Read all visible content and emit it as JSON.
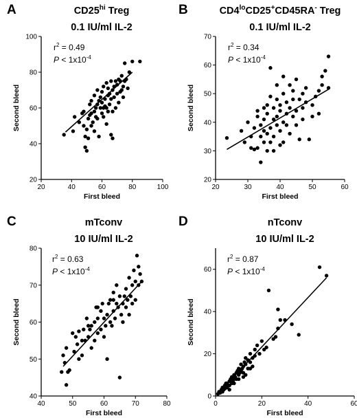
{
  "chart_data": [
    {
      "type": "scatter",
      "panel": "A",
      "title": [
        "CD25",
        "hi",
        " Treg",
        "0.1 IU/ml IL-2"
      ],
      "xlabel": "First bleed",
      "ylabel": "Second bleed",
      "xlim": [
        20,
        100
      ],
      "ylim": [
        20,
        100
      ],
      "xticks": [
        20,
        40,
        60,
        80,
        100
      ],
      "yticks": [
        20,
        40,
        60,
        80,
        100
      ],
      "stats": {
        "r2": "0.49",
        "p": "< 1x10",
        "p_exp": "-4"
      },
      "fit": {
        "x1": 36,
        "y1": 46.5,
        "x2": 80,
        "y2": 80
      },
      "points": [
        [
          35,
          45
        ],
        [
          41,
          47
        ],
        [
          42,
          55
        ],
        [
          45,
          52
        ],
        [
          47,
          57
        ],
        [
          48,
          58
        ],
        [
          48,
          50
        ],
        [
          49,
          38
        ],
        [
          49,
          44
        ],
        [
          50,
          36
        ],
        [
          50,
          48
        ],
        [
          51,
          43
        ],
        [
          51,
          54
        ],
        [
          52,
          56
        ],
        [
          52,
          62
        ],
        [
          53,
          50
        ],
        [
          53,
          57
        ],
        [
          53,
          64
        ],
        [
          54,
          52
        ],
        [
          55,
          47
        ],
        [
          55,
          58
        ],
        [
          55,
          67
        ],
        [
          56,
          60
        ],
        [
          57,
          62
        ],
        [
          57,
          70
        ],
        [
          57,
          54
        ],
        [
          58,
          64
        ],
        [
          58,
          44
        ],
        [
          59,
          60
        ],
        [
          59,
          66
        ],
        [
          60,
          57
        ],
        [
          60,
          63
        ],
        [
          60,
          69
        ],
        [
          61,
          72
        ],
        [
          61,
          55
        ],
        [
          62,
          61
        ],
        [
          62,
          65
        ],
        [
          63,
          60
        ],
        [
          63,
          74
        ],
        [
          63,
          51
        ],
        [
          64,
          67
        ],
        [
          64,
          71
        ],
        [
          65,
          62
        ],
        [
          65,
          68
        ],
        [
          66,
          65
        ],
        [
          66,
          75
        ],
        [
          66,
          45
        ],
        [
          67,
          43
        ],
        [
          67,
          58
        ],
        [
          67,
          70
        ],
        [
          68,
          72
        ],
        [
          68,
          66
        ],
        [
          69,
          60
        ],
        [
          69,
          75
        ],
        [
          70,
          68
        ],
        [
          70,
          73
        ],
        [
          71,
          63
        ],
        [
          71,
          76
        ],
        [
          72,
          69
        ],
        [
          72,
          75
        ],
        [
          73,
          70
        ],
        [
          73,
          78
        ],
        [
          74,
          72
        ],
        [
          74,
          66
        ],
        [
          75,
          75
        ],
        [
          75,
          85
        ],
        [
          76,
          76
        ],
        [
          77,
          71
        ],
        [
          78,
          80
        ],
        [
          80,
          86
        ],
        [
          85,
          86
        ],
        [
          56,
          55
        ],
        [
          61,
          60
        ],
        [
          64,
          58
        ]
      ]
    },
    {
      "type": "scatter",
      "panel": "B",
      "title": [
        "CD4",
        "lo",
        "CD25",
        "+",
        "CD45RA",
        "-",
        " Treg",
        "0.1 IU/ml IL-2"
      ],
      "xlabel": "First bleed",
      "ylabel": "Second bleed",
      "xlim": [
        20,
        60
      ],
      "ylim": [
        20,
        70
      ],
      "xticks": [
        20,
        30,
        40,
        50,
        60
      ],
      "yticks": [
        20,
        30,
        40,
        50,
        60,
        70
      ],
      "stats": {
        "r2": "0.34",
        "p": "< 1x10",
        "p_exp": "-4"
      },
      "fit": {
        "x1": 23.5,
        "y1": 30.5,
        "x2": 55,
        "y2": 51.5
      },
      "points": [
        [
          23.5,
          34.5
        ],
        [
          28,
          37
        ],
        [
          29,
          33
        ],
        [
          30,
          40
        ],
        [
          31,
          31
        ],
        [
          31,
          35
        ],
        [
          32,
          30.5
        ],
        [
          32,
          38
        ],
        [
          33,
          31
        ],
        [
          33,
          42
        ],
        [
          33,
          44
        ],
        [
          34,
          35
        ],
        [
          34,
          26
        ],
        [
          34,
          39
        ],
        [
          35,
          33
        ],
        [
          35,
          37
        ],
        [
          35,
          41
        ],
        [
          36,
          30
        ],
        [
          36,
          43
        ],
        [
          36,
          36
        ],
        [
          36,
          46
        ],
        [
          37,
          38
        ],
        [
          37,
          33
        ],
        [
          37,
          49
        ],
        [
          37,
          59
        ],
        [
          38,
          41
        ],
        [
          38,
          35
        ],
        [
          38,
          45
        ],
        [
          38,
          30
        ],
        [
          39,
          39
        ],
        [
          39,
          42
        ],
        [
          39,
          48
        ],
        [
          40,
          37
        ],
        [
          40,
          44
        ],
        [
          40,
          32
        ],
        [
          40,
          46
        ],
        [
          41,
          50
        ],
        [
          41,
          40
        ],
        [
          41,
          33
        ],
        [
          42,
          39
        ],
        [
          42,
          43
        ],
        [
          42,
          47
        ],
        [
          43,
          53
        ],
        [
          43,
          45
        ],
        [
          43,
          36
        ],
        [
          44,
          42
        ],
        [
          44,
          48
        ],
        [
          44,
          51
        ],
        [
          45,
          39
        ],
        [
          45,
          44
        ],
        [
          45,
          55
        ],
        [
          46,
          48
        ],
        [
          46,
          34
        ],
        [
          47,
          50
        ],
        [
          47,
          45
        ],
        [
          47,
          41
        ],
        [
          48,
          52
        ],
        [
          48,
          47
        ],
        [
          49,
          34
        ],
        [
          50,
          42
        ],
        [
          50,
          46
        ],
        [
          51,
          49
        ],
        [
          52,
          43
        ],
        [
          52,
          51
        ],
        [
          53,
          56
        ],
        [
          53,
          53
        ],
        [
          54,
          58
        ],
        [
          55,
          52
        ],
        [
          55,
          63
        ],
        [
          39,
          53
        ],
        [
          41,
          56
        ],
        [
          35,
          45
        ]
      ]
    },
    {
      "type": "scatter",
      "panel": "C",
      "title": [
        "mTconv",
        "10 IU/ml IL-2"
      ],
      "xlabel": "First bleed",
      "ylabel": "Second bleed",
      "xlim": [
        40,
        80
      ],
      "ylim": [
        40,
        80
      ],
      "xticks": [
        40,
        50,
        60,
        70,
        80
      ],
      "yticks": [
        40,
        50,
        60,
        70,
        80
      ],
      "stats": {
        "r2": "0.63",
        "p": "< 1x10",
        "p_exp": "-4"
      },
      "fit": {
        "x1": 47,
        "y1": 48,
        "x2": 72,
        "y2": 71
      },
      "points": [
        [
          46.5,
          46.5
        ],
        [
          47,
          51
        ],
        [
          47.5,
          49
        ],
        [
          48,
          53
        ],
        [
          48,
          43
        ],
        [
          48.5,
          46.5
        ],
        [
          49,
          47
        ],
        [
          50,
          57
        ],
        [
          50.5,
          52
        ],
        [
          51,
          56
        ],
        [
          51.5,
          54
        ],
        [
          52,
          57.5
        ],
        [
          52,
          50
        ],
        [
          53,
          55
        ],
        [
          53,
          51
        ],
        [
          53.5,
          58
        ],
        [
          54,
          55
        ],
        [
          54.5,
          61
        ],
        [
          55,
          56
        ],
        [
          55.5,
          58
        ],
        [
          56,
          53
        ],
        [
          56,
          59
        ],
        [
          57,
          60
        ],
        [
          57,
          55
        ],
        [
          57.5,
          64
        ],
        [
          58,
          61
        ],
        [
          58,
          57
        ],
        [
          59,
          58
        ],
        [
          59,
          63
        ],
        [
          59.5,
          65
        ],
        [
          60,
          61
        ],
        [
          60,
          56
        ],
        [
          60.5,
          59
        ],
        [
          61,
          50
        ],
        [
          61,
          62
        ],
        [
          61.5,
          65
        ],
        [
          62,
          60
        ],
        [
          62,
          66
        ],
        [
          62.5,
          59
        ],
        [
          63,
          63
        ],
        [
          63,
          68
        ],
        [
          63.5,
          61
        ],
        [
          64,
          65
        ],
        [
          64,
          70
        ],
        [
          64.5,
          64
        ],
        [
          65,
          67
        ],
        [
          65,
          45
        ],
        [
          65.5,
          62
        ],
        [
          66,
          65
        ],
        [
          66,
          60
        ],
        [
          66.5,
          67
        ],
        [
          67,
          64
        ],
        [
          67,
          69
        ],
        [
          67.5,
          66
        ],
        [
          68,
          62
        ],
        [
          68,
          72
        ],
        [
          68.5,
          67
        ],
        [
          69,
          70
        ],
        [
          69,
          65
        ],
        [
          69.5,
          74
        ],
        [
          70,
          71
        ],
        [
          70,
          66
        ],
        [
          70.5,
          78
        ],
        [
          71,
          70
        ],
        [
          71,
          75
        ],
        [
          71.5,
          73
        ],
        [
          72,
          71
        ],
        [
          55,
          59
        ],
        [
          58,
          64
        ],
        [
          63,
          66
        ]
      ]
    },
    {
      "type": "scatter",
      "panel": "D",
      "title": [
        "nTconv",
        "10 IU/ml IL-2"
      ],
      "xlabel": "First bleed",
      "ylabel": "Second bleed",
      "xlim": [
        0,
        60
      ],
      "ylim": [
        0,
        70
      ],
      "xticks": [
        0,
        20,
        40,
        60
      ],
      "yticks": [
        0,
        20,
        40,
        60
      ],
      "stats": {
        "r2": "0.87",
        "p": "< 1x10",
        "p_exp": "-4"
      },
      "fit": {
        "x1": 1,
        "y1": 1,
        "x2": 48,
        "y2": 56
      },
      "points": [
        [
          1,
          1
        ],
        [
          1.5,
          2
        ],
        [
          2,
          1.5
        ],
        [
          2.5,
          3
        ],
        [
          3,
          2
        ],
        [
          3,
          4
        ],
        [
          3.5,
          3
        ],
        [
          4,
          5
        ],
        [
          4,
          3.5
        ],
        [
          4.5,
          6
        ],
        [
          5,
          4
        ],
        [
          5,
          6
        ],
        [
          5.5,
          5
        ],
        [
          6,
          7
        ],
        [
          6,
          5
        ],
        [
          6.5,
          8
        ],
        [
          7,
          6
        ],
        [
          7,
          9
        ],
        [
          7.5,
          7
        ],
        [
          8,
          8
        ],
        [
          8,
          10
        ],
        [
          8.5,
          9
        ],
        [
          9,
          11
        ],
        [
          9,
          8
        ],
        [
          9.5,
          12
        ],
        [
          10,
          10
        ],
        [
          10,
          13
        ],
        [
          10.5,
          11
        ],
        [
          11,
          12
        ],
        [
          11,
          15
        ],
        [
          11.5,
          13
        ],
        [
          12,
          14
        ],
        [
          12,
          11
        ],
        [
          12.5,
          16
        ],
        [
          13,
          15
        ],
        [
          13,
          18
        ],
        [
          14,
          13
        ],
        [
          14,
          17
        ],
        [
          15,
          16
        ],
        [
          15,
          20
        ],
        [
          16,
          18
        ],
        [
          16,
          14
        ],
        [
          17,
          22
        ],
        [
          17,
          19
        ],
        [
          18,
          24
        ],
        [
          19,
          20
        ],
        [
          20,
          26
        ],
        [
          21,
          22
        ],
        [
          22,
          23
        ],
        [
          23,
          50
        ],
        [
          25,
          27
        ],
        [
          26,
          28
        ],
        [
          27,
          32
        ],
        [
          27,
          41
        ],
        [
          28,
          36
        ],
        [
          30,
          36
        ],
        [
          33,
          34
        ],
        [
          36,
          29
        ],
        [
          45,
          61
        ],
        [
          48,
          57
        ],
        [
          6,
          3
        ],
        [
          8,
          6
        ],
        [
          10,
          8
        ],
        [
          12,
          9
        ],
        [
          15,
          13
        ],
        [
          13,
          10
        ]
      ]
    }
  ]
}
